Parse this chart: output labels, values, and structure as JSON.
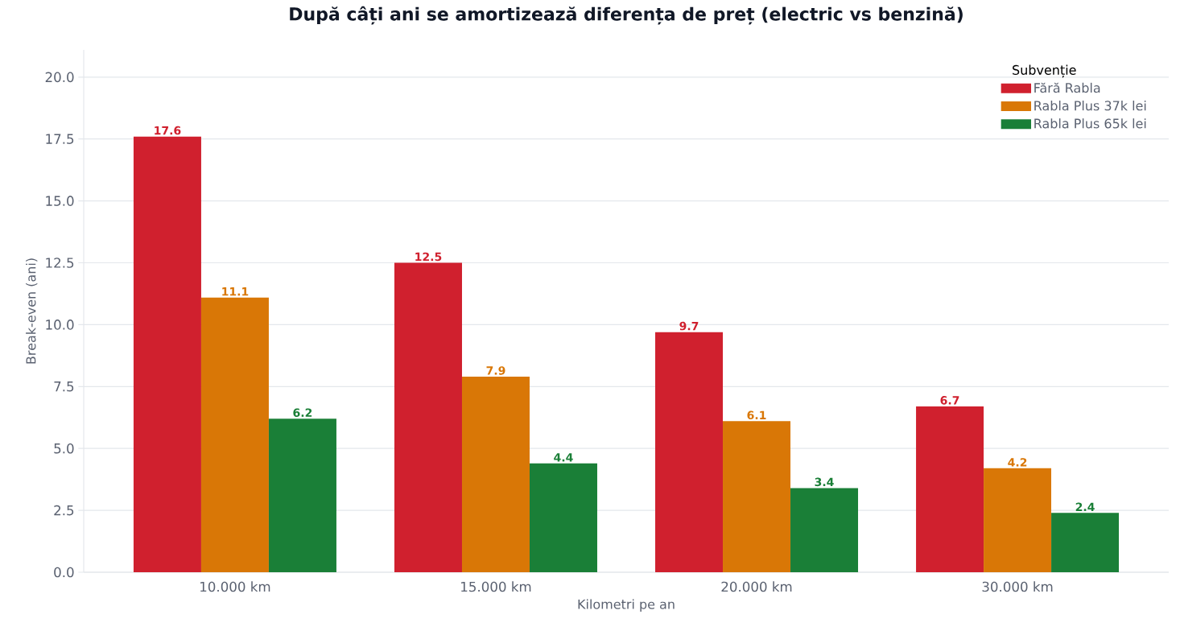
{
  "chart_data": {
    "type": "bar",
    "title": "După câți ani se amortizează diferența de preț (electric vs benzină)",
    "xlabel": "Kilometri pe an",
    "ylabel": "Break-even (ani)",
    "legend_title": "Subvenție",
    "categories": [
      "10.000 km",
      "15.000 km",
      "20.000 km",
      "30.000 km"
    ],
    "series": [
      {
        "name": "Fără Rabla",
        "color": "#d0202e",
        "values": [
          17.6,
          12.5,
          9.7,
          6.7
        ]
      },
      {
        "name": "Rabla Plus 37k lei",
        "color": "#d97706",
        "values": [
          11.1,
          7.9,
          6.1,
          4.2
        ]
      },
      {
        "name": "Rabla Plus 65k lei",
        "color": "#1a7f37",
        "values": [
          6.2,
          4.4,
          3.4,
          2.4
        ]
      }
    ],
    "ylim": [
      0,
      21.1
    ],
    "yticks": [
      {
        "value": 0,
        "label": "0.0"
      },
      {
        "value": 2.5,
        "label": "2.5"
      },
      {
        "value": 5,
        "label": "5.0"
      },
      {
        "value": 7.5,
        "label": "7.5"
      },
      {
        "value": 10,
        "label": "10.0"
      },
      {
        "value": 12.5,
        "label": "12.5"
      },
      {
        "value": 15,
        "label": "15.0"
      },
      {
        "value": 17.5,
        "label": "17.5"
      },
      {
        "value": 20,
        "label": "20.0"
      }
    ],
    "grid": "y",
    "legend": "top right",
    "data_labels": true
  }
}
